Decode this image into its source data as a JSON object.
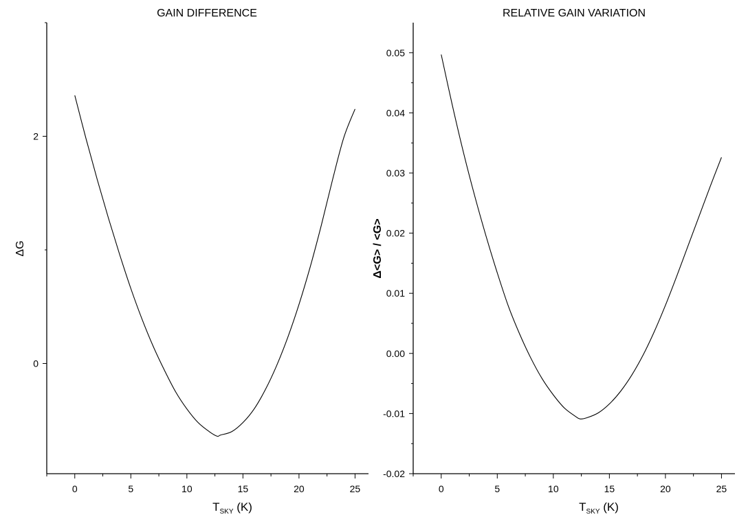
{
  "chart_data": [
    {
      "type": "line",
      "title": "GAIN DIFFERENCE",
      "ylabel": "ΔG",
      "xlabel_main": "T",
      "xlabel_sub": "SKY",
      "xlabel_unit": "(K)",
      "xlim": [
        -2.5,
        26.2
      ],
      "ylim": [
        -0.97,
        3.0
      ],
      "xticks": [
        0,
        5,
        10,
        15,
        20,
        25
      ],
      "yticks": [
        0,
        2
      ],
      "xtick_labels": [
        "0",
        "5",
        "10",
        "15",
        "20",
        "25"
      ],
      "ytick_labels": [
        "0",
        "2"
      ],
      "grid": false,
      "series": [
        {
          "x": [
            0,
            1,
            2,
            3,
            4,
            5,
            6,
            7,
            8,
            9,
            10,
            11,
            12,
            12.7,
            13,
            14,
            15,
            16,
            17,
            18,
            19,
            20,
            21,
            22,
            23,
            24,
            25
          ],
          "y": [
            2.36,
            1.98,
            1.62,
            1.28,
            0.96,
            0.66,
            0.39,
            0.15,
            -0.06,
            -0.25,
            -0.4,
            -0.52,
            -0.6,
            -0.64,
            -0.63,
            -0.6,
            -0.52,
            -0.4,
            -0.23,
            -0.02,
            0.23,
            0.52,
            0.85,
            1.22,
            1.62,
            1.99,
            2.24
          ]
        }
      ]
    },
    {
      "type": "line",
      "title": "RELATIVE GAIN VARIATION",
      "ylabel": "Δ<G> / <G>",
      "xlabel_main": "T",
      "xlabel_sub": "SKY",
      "xlabel_unit": "(K)",
      "xlim": [
        -2.5,
        26.2
      ],
      "ylim": [
        -0.02,
        0.055
      ],
      "xticks": [
        0,
        5,
        10,
        15,
        20,
        25
      ],
      "yticks": [
        -0.02,
        -0.01,
        0.0,
        0.01,
        0.02,
        0.03,
        0.04,
        0.05
      ],
      "xtick_labels": [
        "0",
        "5",
        "10",
        "15",
        "20",
        "25"
      ],
      "ytick_labels": [
        "-0.02",
        "-0.01",
        "0.00",
        "0.01",
        "0.02",
        "0.03",
        "0.04",
        "0.05"
      ],
      "grid": false,
      "series": [
        {
          "x": [
            0,
            1,
            2,
            3,
            4,
            5,
            6,
            7,
            8,
            9,
            10,
            11,
            12,
            12.4,
            13,
            14,
            15,
            16,
            17,
            18,
            19,
            20,
            21,
            22,
            23,
            24,
            25
          ],
          "y": [
            0.0497,
            0.0412,
            0.0333,
            0.0261,
            0.0195,
            0.0134,
            0.0078,
            0.0032,
            -0.0008,
            -0.0042,
            -0.0069,
            -0.0091,
            -0.0105,
            -0.0109,
            -0.0107,
            -0.0099,
            -0.0084,
            -0.0063,
            -0.0036,
            -0.0003,
            0.0036,
            0.008,
            0.0128,
            0.0178,
            0.0228,
            0.0278,
            0.0326
          ]
        }
      ]
    }
  ]
}
